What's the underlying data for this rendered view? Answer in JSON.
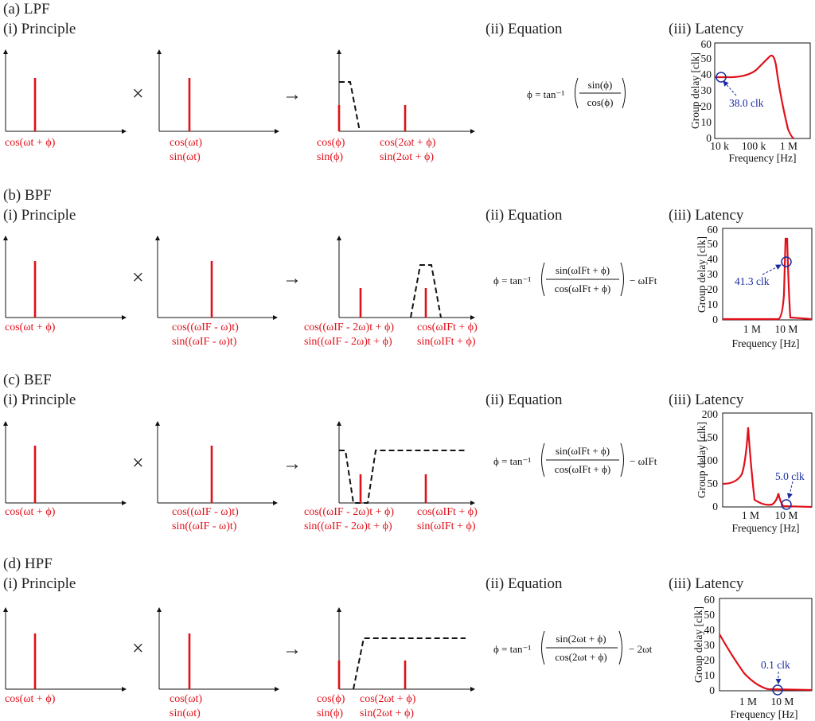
{
  "panels": [
    {
      "title": "(a) LPF",
      "principle_label": "(i) Principle",
      "equation_label": "(ii) Equation",
      "latency_label": "(iii) Latency",
      "op_multiply": "×",
      "op_arrow": "→",
      "plot1": [
        "cos(ωt + ϕ)"
      ],
      "plot2": [
        "cos(ωt)",
        "sin(ωt)"
      ],
      "plot3_low": [
        "cos(ϕ)",
        "sin(ϕ)"
      ],
      "plot3_high": [
        "cos(2ωt + ϕ)",
        "sin(2ωt + ϕ)"
      ],
      "equation": {
        "lhs": "ϕ = tan⁻¹",
        "num": "sin(ϕ)",
        "den": "cos(ϕ)",
        "tail": ""
      },
      "graph": {
        "ylabel": "Group delay [clk]",
        "xlabel": "Frequency [Hz]",
        "yticks": [
          "0",
          "10",
          "20",
          "30",
          "40",
          "50",
          "60"
        ],
        "xticks": [
          "10 k",
          "100 k",
          "1 M"
        ],
        "annotation": "38.0 clk"
      }
    },
    {
      "title": "(b) BPF",
      "principle_label": "(i) Principle",
      "equation_label": "(ii) Equation",
      "latency_label": "(iii) Latency",
      "op_multiply": "×",
      "op_arrow": "→",
      "plot1": [
        "cos(ωt + ϕ)"
      ],
      "plot2": [
        "cos((ωIF - ω)t)",
        "sin((ωIF - ω)t)"
      ],
      "plot3_low": [
        "cos((ωIF - 2ω)t + ϕ)",
        "sin((ωIF - 2ω)t + ϕ)"
      ],
      "plot3_high": [
        "cos(ωIFt + ϕ)",
        "sin(ωIFt + ϕ)"
      ],
      "equation": {
        "lhs": "ϕ = tan⁻¹",
        "num": "sin(ωIFt + ϕ)",
        "den": "cos(ωIFt + ϕ)",
        "tail": "− ωIFt"
      },
      "graph": {
        "ylabel": "Group delay [clk]",
        "xlabel": "Frequency [Hz]",
        "yticks": [
          "0",
          "10",
          "20",
          "30",
          "40",
          "50",
          "60"
        ],
        "xticks": [
          "1 M",
          "10 M"
        ],
        "annotation": "41.3 clk"
      }
    },
    {
      "title": "(c) BEF",
      "principle_label": "(i) Principle",
      "equation_label": "(ii) Equation",
      "latency_label": "(iii) Latency",
      "op_multiply": "×",
      "op_arrow": "→",
      "plot1": [
        "cos(ωt + ϕ)"
      ],
      "plot2": [
        "cos((ωIF - ω)t)",
        "sin((ωIF - ω)t)"
      ],
      "plot3_low": [
        "cos((ωIF - 2ω)t + ϕ)",
        "sin((ωIF - 2ω)t + ϕ)"
      ],
      "plot3_high": [
        "cos(ωIFt + ϕ)",
        "sin(ωIFt + ϕ)"
      ],
      "equation": {
        "lhs": "ϕ = tan⁻¹",
        "num": "sin(ωIFt + ϕ)",
        "den": "cos(ωIFt + ϕ)",
        "tail": "− ωIFt"
      },
      "graph": {
        "ylabel": "Group delay [clk]",
        "xlabel": "Frequency [Hz]",
        "yticks": [
          "0",
          "50",
          "100",
          "150",
          "200"
        ],
        "xticks": [
          "1 M",
          "10 M"
        ],
        "annotation": "5.0 clk"
      }
    },
    {
      "title": "(d) HPF",
      "principle_label": "(i) Principle",
      "equation_label": "(ii) Equation",
      "latency_label": "(iii) Latency",
      "op_multiply": "×",
      "op_arrow": "→",
      "plot1": [
        "cos(ωt + ϕ)"
      ],
      "plot2": [
        "cos(ωt)",
        "sin(ωt)"
      ],
      "plot3_low": [
        "cos(ϕ)",
        "sin(ϕ)"
      ],
      "plot3_high": [
        "cos(2ωt + ϕ)",
        "sin(2ωt + ϕ)"
      ],
      "equation": {
        "lhs": "ϕ = tan⁻¹",
        "num": "sin(2ωt + ϕ)",
        "den": "cos(2ωt + ϕ)",
        "tail": "− 2ωt"
      },
      "graph": {
        "ylabel": "Group delay [clk]",
        "xlabel": "Frequency [Hz]",
        "yticks": [
          "0",
          "10",
          "20",
          "30",
          "40",
          "50",
          "60"
        ],
        "xticks": [
          "1 M",
          "10 M"
        ],
        "annotation": "0.1 clk"
      }
    }
  ]
}
